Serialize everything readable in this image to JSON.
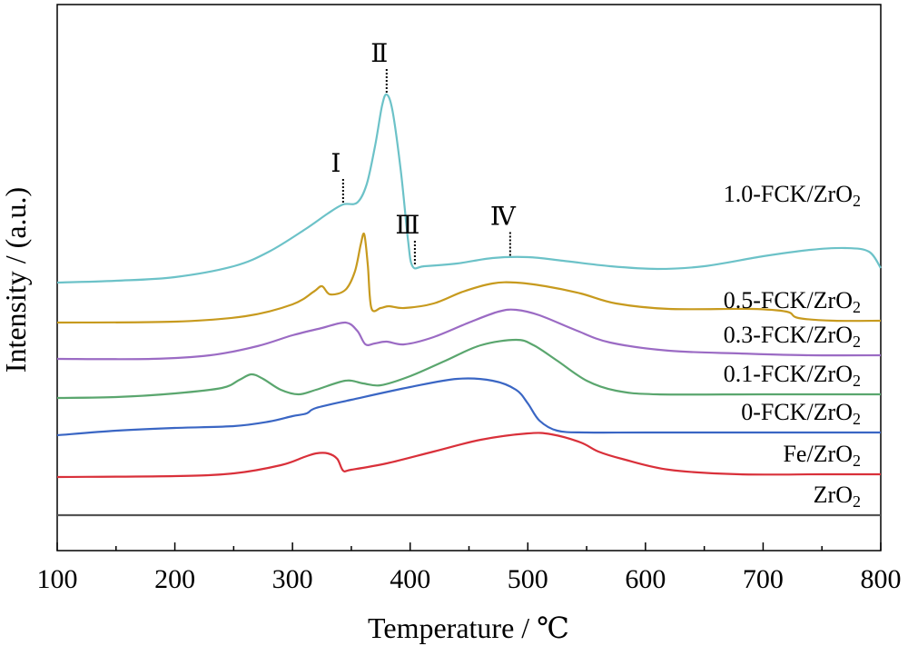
{
  "chart_data": {
    "type": "line",
    "xlabel": "Temperature / ℃",
    "ylabel": "Intensity / (a.u.)",
    "xlim": [
      100,
      800
    ],
    "xticks": [
      100,
      200,
      300,
      400,
      500,
      600,
      700,
      800
    ],
    "y_units": "arbitrary (intensity curves vertically offset, bottom to top)",
    "series": [
      {
        "name": "ZrO2",
        "label_main": "ZrO",
        "label_sub": "2",
        "color": "#555555",
        "points": [
          [
            100,
            0.0
          ],
          [
            800,
            0.0
          ]
        ]
      },
      {
        "name": "Fe/ZrO2",
        "label_main": "Fe/ZrO",
        "label_sub": "2",
        "color": "#d9303a",
        "points": [
          [
            100,
            0.42
          ],
          [
            200,
            0.43
          ],
          [
            250,
            0.46
          ],
          [
            290,
            0.55
          ],
          [
            310,
            0.64
          ],
          [
            320,
            0.68
          ],
          [
            330,
            0.68
          ],
          [
            338,
            0.62
          ],
          [
            343,
            0.49
          ],
          [
            350,
            0.5
          ],
          [
            380,
            0.57
          ],
          [
            420,
            0.7
          ],
          [
            460,
            0.83
          ],
          [
            500,
            0.9
          ],
          [
            520,
            0.89
          ],
          [
            545,
            0.8
          ],
          [
            560,
            0.7
          ],
          [
            580,
            0.62
          ],
          [
            620,
            0.5
          ],
          [
            680,
            0.45
          ],
          [
            750,
            0.45
          ],
          [
            800,
            0.45
          ]
        ]
      },
      {
        "name": "0-FCK/ZrO2",
        "label_main": "0-FCK/ZrO",
        "label_sub": "2",
        "color": "#3a66c4",
        "points": [
          [
            100,
            0.88
          ],
          [
            150,
            0.93
          ],
          [
            200,
            0.96
          ],
          [
            250,
            0.98
          ],
          [
            280,
            1.03
          ],
          [
            300,
            1.09
          ],
          [
            312,
            1.12
          ],
          [
            320,
            1.18
          ],
          [
            350,
            1.27
          ],
          [
            400,
            1.41
          ],
          [
            440,
            1.5
          ],
          [
            470,
            1.48
          ],
          [
            490,
            1.38
          ],
          [
            500,
            1.23
          ],
          [
            510,
            1.04
          ],
          [
            525,
            0.93
          ],
          [
            550,
            0.91
          ],
          [
            600,
            0.91
          ],
          [
            700,
            0.91
          ],
          [
            800,
            0.91
          ]
        ]
      },
      {
        "name": "0.1-FCK/ZrO2",
        "label_main": "0.1-FCK/ZrO",
        "label_sub": "2",
        "color": "#5aa66e",
        "points": [
          [
            100,
            1.29
          ],
          [
            150,
            1.3
          ],
          [
            200,
            1.34
          ],
          [
            240,
            1.4
          ],
          [
            255,
            1.49
          ],
          [
            265,
            1.55
          ],
          [
            275,
            1.5
          ],
          [
            290,
            1.38
          ],
          [
            305,
            1.33
          ],
          [
            320,
            1.38
          ],
          [
            345,
            1.48
          ],
          [
            360,
            1.45
          ],
          [
            375,
            1.43
          ],
          [
            400,
            1.53
          ],
          [
            430,
            1.7
          ],
          [
            460,
            1.87
          ],
          [
            490,
            1.93
          ],
          [
            505,
            1.87
          ],
          [
            525,
            1.7
          ],
          [
            550,
            1.48
          ],
          [
            575,
            1.37
          ],
          [
            610,
            1.33
          ],
          [
            700,
            1.33
          ],
          [
            800,
            1.33
          ]
        ]
      },
      {
        "name": "0.3-FCK/ZrO2",
        "label_main": "0.3-FCK/ZrO",
        "label_sub": "2",
        "color": "#9b6bc4",
        "points": [
          [
            100,
            1.72
          ],
          [
            180,
            1.72
          ],
          [
            230,
            1.76
          ],
          [
            270,
            1.86
          ],
          [
            300,
            1.98
          ],
          [
            325,
            2.06
          ],
          [
            345,
            2.12
          ],
          [
            355,
            2.03
          ],
          [
            362,
            1.88
          ],
          [
            370,
            1.89
          ],
          [
            380,
            1.91
          ],
          [
            395,
            1.88
          ],
          [
            420,
            1.96
          ],
          [
            450,
            2.12
          ],
          [
            475,
            2.24
          ],
          [
            490,
            2.26
          ],
          [
            510,
            2.2
          ],
          [
            540,
            2.04
          ],
          [
            570,
            1.9
          ],
          [
            620,
            1.81
          ],
          [
            680,
            1.78
          ],
          [
            740,
            1.76
          ],
          [
            800,
            1.76
          ]
        ]
      },
      {
        "name": "0.5-FCK/ZrO2",
        "label_main": "0.5-FCK/ZrO",
        "label_sub": "2",
        "color": "#c79a1e",
        "points": [
          [
            100,
            2.12
          ],
          [
            200,
            2.13
          ],
          [
            260,
            2.19
          ],
          [
            300,
            2.32
          ],
          [
            318,
            2.46
          ],
          [
            325,
            2.52
          ],
          [
            332,
            2.43
          ],
          [
            345,
            2.48
          ],
          [
            353,
            2.68
          ],
          [
            358,
            2.98
          ],
          [
            361,
            3.09
          ],
          [
            364,
            2.75
          ],
          [
            367,
            2.28
          ],
          [
            375,
            2.28
          ],
          [
            382,
            2.3
          ],
          [
            395,
            2.28
          ],
          [
            420,
            2.33
          ],
          [
            445,
            2.46
          ],
          [
            470,
            2.55
          ],
          [
            490,
            2.56
          ],
          [
            515,
            2.52
          ],
          [
            545,
            2.44
          ],
          [
            575,
            2.33
          ],
          [
            620,
            2.27
          ],
          [
            690,
            2.27
          ],
          [
            720,
            2.24
          ],
          [
            730,
            2.17
          ],
          [
            760,
            2.14
          ],
          [
            800,
            2.14
          ]
        ]
      },
      {
        "name": "1.0-FCK/ZrO2",
        "label_main": "1.0-FCK/ZrO",
        "label_sub": "2",
        "color": "#6cc2c8",
        "points": [
          [
            100,
            2.56
          ],
          [
            150,
            2.58
          ],
          [
            200,
            2.62
          ],
          [
            250,
            2.74
          ],
          [
            280,
            2.9
          ],
          [
            310,
            3.14
          ],
          [
            330,
            3.32
          ],
          [
            343,
            3.42
          ],
          [
            355,
            3.44
          ],
          [
            363,
            3.64
          ],
          [
            370,
            4.05
          ],
          [
            376,
            4.5
          ],
          [
            380,
            4.63
          ],
          [
            385,
            4.45
          ],
          [
            392,
            3.8
          ],
          [
            398,
            3.05
          ],
          [
            402,
            2.74
          ],
          [
            412,
            2.74
          ],
          [
            440,
            2.77
          ],
          [
            470,
            2.83
          ],
          [
            500,
            2.84
          ],
          [
            530,
            2.8
          ],
          [
            570,
            2.74
          ],
          [
            610,
            2.71
          ],
          [
            650,
            2.74
          ],
          [
            700,
            2.85
          ],
          [
            740,
            2.92
          ],
          [
            770,
            2.94
          ],
          [
            790,
            2.9
          ],
          [
            800,
            2.72
          ]
        ]
      }
    ],
    "peak_markers": [
      {
        "label": "Ⅰ",
        "x": 343
      },
      {
        "label": "Ⅱ",
        "x": 380
      },
      {
        "label": "Ⅲ",
        "x": 404
      },
      {
        "label": "Ⅳ",
        "x": 485
      }
    ]
  }
}
